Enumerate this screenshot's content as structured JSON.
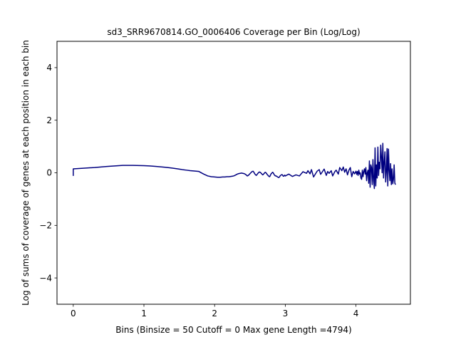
{
  "chart_data": {
    "type": "line",
    "title": "sd3_SRR9670814.GO_0006406 Coverage per Bin (Log/Log)",
    "xlabel": "Bins  (Binsize = 50 Cutoff = 0 Max gene Length =4794)",
    "ylabel": "Log of sums of coverage of genes at each position in each bin",
    "xlim": [
      -0.23,
      4.77
    ],
    "ylim": [
      -5,
      5
    ],
    "xticks": [
      0,
      1,
      2,
      3,
      4
    ],
    "xtick_labels": [
      "0",
      "1",
      "2",
      "3",
      "4"
    ],
    "yticks": [
      -4,
      -2,
      0,
      2,
      4
    ],
    "ytick_labels": [
      "−4",
      "−2",
      "0",
      "2",
      "4"
    ],
    "grid": false,
    "series": [
      {
        "color": "#000080",
        "x": [
          0,
          0,
          0.301,
          0.477,
          0.699,
          0.845,
          1.0,
          1.079,
          1.176,
          1.301,
          1.398,
          1.477,
          1.544,
          1.602,
          1.653,
          1.699,
          1.778,
          1.845,
          1.903,
          1.954,
          2.0,
          2.041,
          2.079,
          2.114,
          2.146,
          2.176,
          2.204,
          2.23,
          2.255,
          2.279,
          2.301,
          2.322,
          2.342,
          2.362,
          2.38,
          2.398,
          2.415,
          2.431,
          2.447,
          2.462,
          2.477,
          2.491,
          2.505,
          2.519,
          2.531,
          2.544,
          2.556,
          2.568,
          2.58,
          2.591,
          2.602,
          2.613,
          2.623,
          2.633,
          2.643,
          2.653,
          2.663,
          2.672,
          2.681,
          2.69,
          2.699,
          2.708,
          2.716,
          2.724,
          2.732,
          2.74,
          2.748,
          2.756,
          2.763,
          2.771,
          2.778,
          2.785,
          2.792,
          2.799,
          2.806,
          2.813,
          2.82,
          2.826,
          2.833,
          2.839,
          2.845,
          2.851,
          2.857,
          2.863,
          2.869,
          2.875,
          2.881,
          2.886,
          2.892,
          2.898,
          2.903,
          2.908,
          2.914,
          2.919,
          2.924,
          2.929,
          2.934,
          2.94,
          2.944,
          2.949,
          2.954,
          2.959,
          2.964,
          2.968,
          2.973,
          2.978,
          2.982,
          2.987,
          2.991,
          2.996,
          3.0,
          3.05,
          3.1,
          3.15,
          3.2,
          3.25,
          3.3,
          3.32,
          3.35,
          3.37,
          3.4,
          3.45,
          3.48,
          3.5,
          3.52,
          3.55,
          3.58,
          3.6,
          3.62,
          3.65,
          3.67,
          3.7,
          3.72,
          3.75,
          3.77,
          3.8,
          3.82,
          3.84,
          3.86,
          3.88,
          3.9,
          3.92,
          3.94,
          3.96,
          3.98,
          4.0,
          4.01,
          4.02,
          4.03,
          4.04,
          4.05,
          4.06,
          4.07,
          4.08,
          4.09,
          4.1,
          4.11,
          4.12,
          4.13,
          4.14,
          4.15,
          4.16,
          4.17,
          4.18,
          4.19,
          4.2,
          4.21,
          4.22,
          4.23,
          4.24,
          4.25,
          4.26,
          4.27,
          4.28,
          4.29,
          4.3,
          4.31,
          4.32,
          4.33,
          4.34,
          4.35,
          4.36,
          4.37,
          4.38,
          4.39,
          4.4,
          4.41,
          4.42,
          4.43,
          4.44,
          4.45,
          4.46,
          4.47,
          4.48,
          4.49,
          4.5,
          4.51,
          4.52,
          4.53,
          4.54,
          4.55,
          4.56
        ],
        "y": [
          -0.12,
          0.15,
          0.2,
          0.24,
          0.28,
          0.28,
          0.27,
          0.26,
          0.24,
          0.21,
          0.18,
          0.15,
          0.12,
          0.1,
          0.08,
          0.07,
          0.05,
          -0.05,
          -0.12,
          -0.15,
          -0.16,
          -0.17,
          -0.17,
          -0.16,
          -0.16,
          -0.15,
          -0.15,
          -0.14,
          -0.13,
          -0.11,
          -0.08,
          -0.05,
          -0.03,
          -0.02,
          -0.01,
          -0.02,
          -0.03,
          -0.05,
          -0.08,
          -0.12,
          -0.1,
          -0.06,
          -0.02,
          0.02,
          0.05,
          0.06,
          0.02,
          -0.04,
          -0.08,
          -0.1,
          -0.06,
          -0.02,
          0.01,
          0.03,
          0.02,
          0.0,
          -0.03,
          -0.06,
          -0.08,
          -0.06,
          -0.03,
          0.0,
          0.02,
          0.01,
          -0.02,
          -0.05,
          -0.08,
          -0.1,
          -0.12,
          -0.14,
          -0.15,
          -0.12,
          -0.08,
          -0.04,
          -0.02,
          0.0,
          0.02,
          0.01,
          -0.02,
          -0.05,
          -0.08,
          -0.1,
          -0.11,
          -0.12,
          -0.12,
          -0.13,
          -0.14,
          -0.15,
          -0.16,
          -0.17,
          -0.18,
          -0.18,
          -0.17,
          -0.15,
          -0.13,
          -0.11,
          -0.1,
          -0.09,
          -0.08,
          -0.07,
          -0.07,
          -0.08,
          -0.1,
          -0.12,
          -0.13,
          -0.13,
          -0.12,
          -0.1,
          -0.09,
          -0.1,
          -0.12,
          -0.05,
          -0.14,
          -0.08,
          -0.12,
          0.04,
          -0.02,
          0.08,
          -0.04,
          0.12,
          -0.16,
          0.06,
          0.12,
          -0.06,
          0.02,
          0.14,
          -0.1,
          0.05,
          -0.02,
          0.08,
          -0.12,
          0.04,
          0.1,
          -0.05,
          0.2,
          0.08,
          0.22,
          0.02,
          0.15,
          -0.08,
          0.1,
          0.2,
          -0.15,
          0.05,
          -0.04,
          0.06,
          -0.06,
          0.05,
          -0.1,
          0.1,
          -0.05,
          0.0,
          -0.2,
          -0.25,
          0.1,
          -0.15,
          0.05,
          0.15,
          -0.05,
          0.2,
          -0.3,
          0.0,
          0.1,
          -0.4,
          0.45,
          -0.55,
          0.3,
          0.2,
          -0.45,
          0.5,
          -0.3,
          -0.6,
          0.95,
          -0.5,
          0.3,
          -0.2,
          0.98,
          -0.1,
          0.4,
          0.15,
          1.05,
          0.6,
          0.0,
          1.12,
          -0.2,
          0.4,
          0.8,
          -0.35,
          0.05,
          0.92,
          -0.5,
          0.9,
          0.1,
          -0.3,
          0.35,
          -0.45,
          0.15,
          -0.42,
          -0.25,
          0.3,
          -0.4,
          -0.45
        ]
      }
    ]
  }
}
